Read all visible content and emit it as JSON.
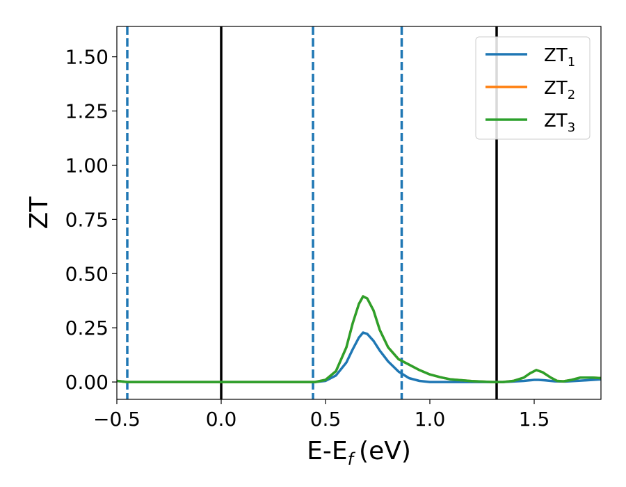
{
  "chart_data": {
    "type": "line",
    "xlabel": "E-E",
    "xlabel_subscript": "f",
    "xlabel_unit": "(eV)",
    "ylabel": "ZT",
    "xlim": [
      -0.5,
      1.82
    ],
    "ylim": [
      -0.08,
      1.64
    ],
    "xticks": [
      -0.5,
      0.0,
      0.5,
      1.0,
      1.5
    ],
    "xtick_labels": [
      "−0.5",
      "0.0",
      "0.5",
      "1.0",
      "1.5"
    ],
    "yticks": [
      0.0,
      0.25,
      0.5,
      0.75,
      1.0,
      1.25,
      1.5
    ],
    "ytick_labels": [
      "0.00",
      "0.25",
      "0.50",
      "0.75",
      "1.00",
      "1.25",
      "1.50"
    ],
    "grid": false,
    "legend_position": "top-right",
    "colors": {
      "ZT1": "#1f77b4",
      "ZT2": "#ff7f0e",
      "ZT3": "#2ca02c",
      "ref": "#000000"
    },
    "vlines": [
      {
        "x": -0.45,
        "style": "dashed",
        "color": "#1f77b4"
      },
      {
        "x": 0.0,
        "style": "solid",
        "color": "#000000"
      },
      {
        "x": 0.44,
        "style": "dashed",
        "color": "#1f77b4"
      },
      {
        "x": 0.865,
        "style": "dashed",
        "color": "#1f77b4"
      },
      {
        "x": 1.32,
        "style": "solid",
        "color": "#000000"
      }
    ],
    "series": [
      {
        "name": "ZT",
        "subscript": "1",
        "color": "#1f77b4",
        "x": [
          -0.5,
          -0.45,
          -0.4,
          0.0,
          0.4,
          0.45,
          0.5,
          0.55,
          0.6,
          0.63,
          0.66,
          0.68,
          0.7,
          0.73,
          0.76,
          0.8,
          0.85,
          0.9,
          0.95,
          1.0,
          1.1,
          1.2,
          1.3,
          1.35,
          1.4,
          1.45,
          1.5,
          1.52,
          1.55,
          1.6,
          1.65,
          1.7,
          1.75,
          1.82
        ],
        "y": [
          0.005,
          0.0,
          0.0,
          0.0,
          0.0,
          0.0,
          0.005,
          0.03,
          0.09,
          0.15,
          0.205,
          0.228,
          0.222,
          0.19,
          0.145,
          0.095,
          0.048,
          0.018,
          0.005,
          0.0,
          0.0,
          0.0,
          0.0,
          0.0,
          0.002,
          0.005,
          0.01,
          0.01,
          0.008,
          0.003,
          0.002,
          0.005,
          0.008,
          0.012
        ]
      },
      {
        "name": "ZT",
        "subscript": "2",
        "color": "#ff7f0e",
        "x": [
          -0.5,
          -0.45,
          -0.4,
          0.0,
          0.4,
          0.45,
          0.5,
          0.55,
          0.6,
          0.63,
          0.66,
          0.68,
          0.7,
          0.73,
          0.76,
          0.8,
          0.85,
          0.9,
          0.95,
          1.0,
          1.05,
          1.1,
          1.2,
          1.3,
          1.35,
          1.4,
          1.45,
          1.48,
          1.51,
          1.54,
          1.58,
          1.61,
          1.64,
          1.68,
          1.72,
          1.78,
          1.82
        ],
        "y": [
          0.005,
          0.0,
          0.0,
          0.0,
          0.0,
          0.0,
          0.01,
          0.05,
          0.16,
          0.27,
          0.36,
          0.395,
          0.385,
          0.33,
          0.24,
          0.16,
          0.105,
          0.08,
          0.055,
          0.035,
          0.022,
          0.012,
          0.004,
          0.0,
          0.0,
          0.005,
          0.02,
          0.04,
          0.055,
          0.045,
          0.02,
          0.005,
          0.003,
          0.01,
          0.02,
          0.02,
          0.018
        ]
      },
      {
        "name": "ZT",
        "subscript": "3",
        "color": "#2ca02c",
        "x": [
          -0.5,
          -0.45,
          -0.4,
          0.0,
          0.4,
          0.45,
          0.5,
          0.55,
          0.6,
          0.63,
          0.66,
          0.68,
          0.7,
          0.73,
          0.76,
          0.8,
          0.85,
          0.9,
          0.95,
          1.0,
          1.05,
          1.1,
          1.2,
          1.3,
          1.35,
          1.4,
          1.45,
          1.48,
          1.51,
          1.54,
          1.58,
          1.61,
          1.64,
          1.68,
          1.72,
          1.78,
          1.82
        ],
        "y": [
          0.005,
          0.0,
          0.0,
          0.0,
          0.0,
          0.0,
          0.01,
          0.05,
          0.16,
          0.27,
          0.36,
          0.395,
          0.385,
          0.33,
          0.24,
          0.16,
          0.105,
          0.08,
          0.055,
          0.035,
          0.022,
          0.012,
          0.004,
          0.0,
          0.0,
          0.005,
          0.02,
          0.04,
          0.055,
          0.045,
          0.02,
          0.005,
          0.003,
          0.01,
          0.02,
          0.02,
          0.018
        ]
      }
    ]
  }
}
